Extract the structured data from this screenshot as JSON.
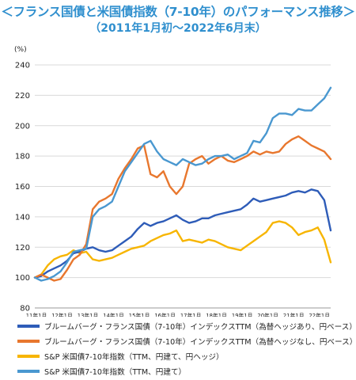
{
  "title": {
    "line1": "＜フランス国債と米国債指数（7-10年）のパフォーマンス推移＞",
    "line2": "（2011年1月初～2022年6月末）"
  },
  "chart_data": {
    "type": "line",
    "y_unit_label": "(%)",
    "ylim": [
      80,
      240
    ],
    "yticks": [
      80,
      100,
      120,
      140,
      160,
      180,
      200,
      220,
      240
    ],
    "x_tick_labels": [
      "11年1月",
      "12年1月",
      "13年1月",
      "14年1月",
      "15年1月",
      "16年1月",
      "17年1月",
      "18年1月",
      "19年1月",
      "20年1月",
      "21年1月",
      "22年1月"
    ],
    "x": [
      2011.0,
      2011.25,
      2011.5,
      2011.75,
      2012.0,
      2012.25,
      2012.5,
      2012.75,
      2013.0,
      2013.25,
      2013.5,
      2013.75,
      2014.0,
      2014.25,
      2014.5,
      2014.75,
      2015.0,
      2015.25,
      2015.5,
      2015.75,
      2016.0,
      2016.25,
      2016.5,
      2016.75,
      2017.0,
      2017.25,
      2017.5,
      2017.75,
      2018.0,
      2018.25,
      2018.5,
      2018.75,
      2019.0,
      2019.25,
      2019.5,
      2019.75,
      2020.0,
      2020.25,
      2020.5,
      2020.75,
      2021.0,
      2021.25,
      2021.5,
      2021.75,
      2022.0,
      2022.25,
      2022.5
    ],
    "series": [
      {
        "name": "ブルームバーグ・フランス国債（7-10年）インデックスTTM（為替ヘッジあり、円ベース）",
        "color": "#2e5cb8",
        "values": [
          100,
          101,
          104,
          106,
          108,
          111,
          116,
          117,
          119,
          120,
          118,
          117,
          118,
          121,
          124,
          127,
          132,
          136,
          134,
          136,
          137,
          139,
          141,
          138,
          136,
          137,
          139,
          139,
          141,
          142,
          143,
          144,
          145,
          148,
          152,
          150,
          151,
          152,
          153,
          154,
          156,
          157,
          156,
          158,
          157,
          151,
          131
        ]
      },
      {
        "name": "ブルームバーグ・フランス国債（7-10年）インデックスTTM（為替ヘッジなし、円ベース）",
        "color": "#e8772e",
        "values": [
          100,
          102,
          100,
          98,
          99,
          105,
          112,
          115,
          122,
          145,
          150,
          152,
          155,
          165,
          172,
          178,
          185,
          187,
          168,
          166,
          170,
          160,
          155,
          160,
          175,
          178,
          180,
          175,
          178,
          180,
          177,
          176,
          178,
          180,
          183,
          181,
          183,
          182,
          183,
          188,
          191,
          193,
          190,
          187,
          185,
          183,
          178
        ]
      },
      {
        "name": "S&P 米国債7-10年指数（TTM、円建て、円ヘッジ）",
        "color": "#f7b500",
        "values": [
          100,
          102,
          108,
          112,
          114,
          115,
          118,
          116,
          117,
          112,
          111,
          112,
          113,
          115,
          117,
          119,
          120,
          121,
          124,
          126,
          128,
          129,
          131,
          124,
          125,
          124,
          123,
          125,
          124,
          122,
          120,
          119,
          118,
          121,
          124,
          127,
          130,
          136,
          137,
          136,
          133,
          128,
          130,
          131,
          133,
          125,
          110
        ]
      },
      {
        "name": "S&P 米国債7-10年指数（TTM、円建て）",
        "color": "#4a98d0",
        "values": [
          100,
          98,
          99,
          101,
          104,
          110,
          117,
          118,
          119,
          140,
          145,
          147,
          150,
          160,
          170,
          176,
          182,
          188,
          190,
          183,
          178,
          176,
          174,
          178,
          176,
          174,
          175,
          178,
          180,
          180,
          181,
          178,
          180,
          182,
          190,
          189,
          195,
          205,
          208,
          208,
          207,
          211,
          210,
          210,
          214,
          218,
          225
        ]
      }
    ]
  }
}
